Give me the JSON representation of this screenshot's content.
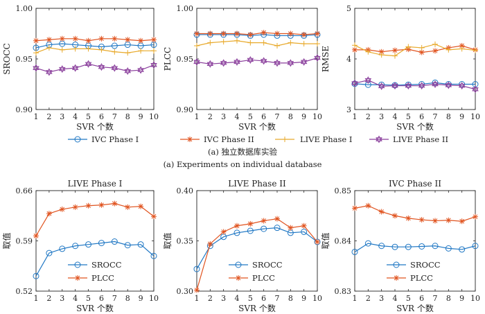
{
  "figure": {
    "caption_a_zh": "(a) 独立数据库实验",
    "caption_a_en": "(a) Experiments on individual database"
  },
  "colors": {
    "ivc1": "#1f77c4",
    "ivc2": "#e0531f",
    "live1": "#e8a92a",
    "live2": "#8a3f9c",
    "srocc": "#1f77c4",
    "plcc": "#e0531f"
  },
  "legend_top": [
    "IVC Phase I",
    "IVC Phase II",
    "LIVE Phase I",
    "LIVE Phase II"
  ],
  "legend_bottom": [
    "SROCC",
    "PLCC"
  ],
  "chart_data": [
    {
      "type": "line",
      "ylabel": "SROCC",
      "xlabel": "SVR 个数",
      "xlim": [
        1,
        10
      ],
      "ylim": [
        0.9,
        1.0
      ],
      "yticks": [
        "0.90",
        "0.95",
        "1.00"
      ],
      "x": [
        1,
        2,
        3,
        4,
        5,
        6,
        7,
        8,
        9,
        10
      ],
      "series": [
        {
          "name": "IVC Phase I",
          "values": [
            0.961,
            0.964,
            0.965,
            0.964,
            0.963,
            0.962,
            0.963,
            0.964,
            0.963,
            0.964
          ]
        },
        {
          "name": "IVC Phase II",
          "values": [
            0.968,
            0.969,
            0.97,
            0.97,
            0.968,
            0.97,
            0.97,
            0.969,
            0.968,
            0.969
          ]
        },
        {
          "name": "LIVE Phase I",
          "values": [
            0.956,
            0.961,
            0.959,
            0.96,
            0.96,
            0.959,
            0.957,
            0.956,
            0.958,
            0.958
          ]
        },
        {
          "name": "LIVE Phase II",
          "values": [
            0.941,
            0.937,
            0.94,
            0.941,
            0.945,
            0.942,
            0.941,
            0.938,
            0.939,
            0.944
          ]
        }
      ]
    },
    {
      "type": "line",
      "ylabel": "PLCC",
      "xlabel": "SVR 个数",
      "xlim": [
        1,
        10
      ],
      "ylim": [
        0.9,
        1.0
      ],
      "yticks": [
        "0.90",
        "0.95",
        "1.00"
      ],
      "x": [
        1,
        2,
        3,
        4,
        5,
        6,
        7,
        8,
        9,
        10
      ],
      "series": [
        {
          "name": "IVC Phase I",
          "values": [
            0.974,
            0.974,
            0.974,
            0.974,
            0.973,
            0.974,
            0.973,
            0.973,
            0.973,
            0.974
          ]
        },
        {
          "name": "IVC Phase II",
          "values": [
            0.975,
            0.975,
            0.975,
            0.975,
            0.974,
            0.976,
            0.975,
            0.975,
            0.974,
            0.975
          ]
        },
        {
          "name": "LIVE Phase I",
          "values": [
            0.963,
            0.966,
            0.967,
            0.968,
            0.966,
            0.966,
            0.963,
            0.966,
            0.965,
            0.965
          ]
        },
        {
          "name": "LIVE Phase II",
          "values": [
            0.947,
            0.945,
            0.946,
            0.947,
            0.949,
            0.948,
            0.946,
            0.946,
            0.947,
            0.951
          ]
        }
      ]
    },
    {
      "type": "line",
      "ylabel": "RMSE",
      "xlabel": "SVR 个数",
      "xlim": [
        1,
        10
      ],
      "ylim": [
        3,
        5
      ],
      "yticks": [
        "3",
        "4",
        "5"
      ],
      "x": [
        1,
        2,
        3,
        4,
        5,
        6,
        7,
        8,
        9,
        10
      ],
      "series": [
        {
          "name": "IVC Phase I",
          "values": [
            3.51,
            3.49,
            3.49,
            3.48,
            3.49,
            3.5,
            3.53,
            3.5,
            3.5,
            3.5
          ]
        },
        {
          "name": "IVC Phase II",
          "values": [
            4.18,
            4.18,
            4.14,
            4.17,
            4.19,
            4.13,
            4.16,
            4.22,
            4.26,
            4.18
          ]
        },
        {
          "name": "LIVE Phase I",
          "values": [
            4.27,
            4.14,
            4.08,
            4.06,
            4.24,
            4.22,
            4.29,
            4.18,
            4.2,
            4.17
          ]
        },
        {
          "name": "LIVE Phase II",
          "values": [
            3.52,
            3.58,
            3.46,
            3.47,
            3.47,
            3.47,
            3.5,
            3.48,
            3.47,
            3.4
          ]
        }
      ]
    },
    {
      "type": "line",
      "title": "LIVE Phase I",
      "ylabel": "取值",
      "xlabel": "SVR 个数",
      "xlim": [
        1,
        10
      ],
      "ylim": [
        0.52,
        0.66
      ],
      "yticks": [
        "0.52",
        "0.59",
        "0.66"
      ],
      "x": [
        1,
        2,
        3,
        4,
        5,
        6,
        7,
        8,
        9,
        10
      ],
      "series": [
        {
          "name": "SROCC",
          "values": [
            0.541,
            0.573,
            0.579,
            0.583,
            0.585,
            0.587,
            0.589,
            0.584,
            0.585,
            0.569
          ]
        },
        {
          "name": "PLCC",
          "values": [
            0.597,
            0.628,
            0.634,
            0.637,
            0.639,
            0.64,
            0.642,
            0.637,
            0.638,
            0.624
          ]
        }
      ]
    },
    {
      "type": "line",
      "title": "LIVE Phase II",
      "ylabel": "取值",
      "xlabel": "SVR 个数",
      "xlim": [
        1,
        10
      ],
      "ylim": [
        0.3,
        0.4
      ],
      "yticks": [
        "0.30",
        "0.35",
        "0.40"
      ],
      "x": [
        1,
        2,
        3,
        4,
        5,
        6,
        7,
        8,
        9,
        10
      ],
      "series": [
        {
          "name": "SROCC",
          "values": [
            0.322,
            0.345,
            0.354,
            0.358,
            0.36,
            0.362,
            0.363,
            0.358,
            0.359,
            0.349
          ]
        },
        {
          "name": "PLCC",
          "values": [
            0.301,
            0.347,
            0.359,
            0.365,
            0.367,
            0.37,
            0.372,
            0.363,
            0.365,
            0.349
          ]
        }
      ]
    },
    {
      "type": "line",
      "title": "IVC Phase II",
      "ylabel": "取值",
      "xlabel": "SVR 个数",
      "xlim": [
        1,
        10
      ],
      "ylim": [
        0.83,
        0.85
      ],
      "yticks": [
        "0.83",
        "0.84",
        "0.85"
      ],
      "x": [
        1,
        2,
        3,
        4,
        5,
        6,
        7,
        8,
        9,
        10
      ],
      "series": [
        {
          "name": "SROCC",
          "values": [
            0.8378,
            0.8395,
            0.839,
            0.8388,
            0.8388,
            0.8389,
            0.839,
            0.8385,
            0.8383,
            0.839
          ]
        },
        {
          "name": "PLCC",
          "values": [
            0.8465,
            0.847,
            0.8458,
            0.845,
            0.8445,
            0.8442,
            0.844,
            0.8441,
            0.8439,
            0.8448
          ]
        }
      ]
    }
  ]
}
